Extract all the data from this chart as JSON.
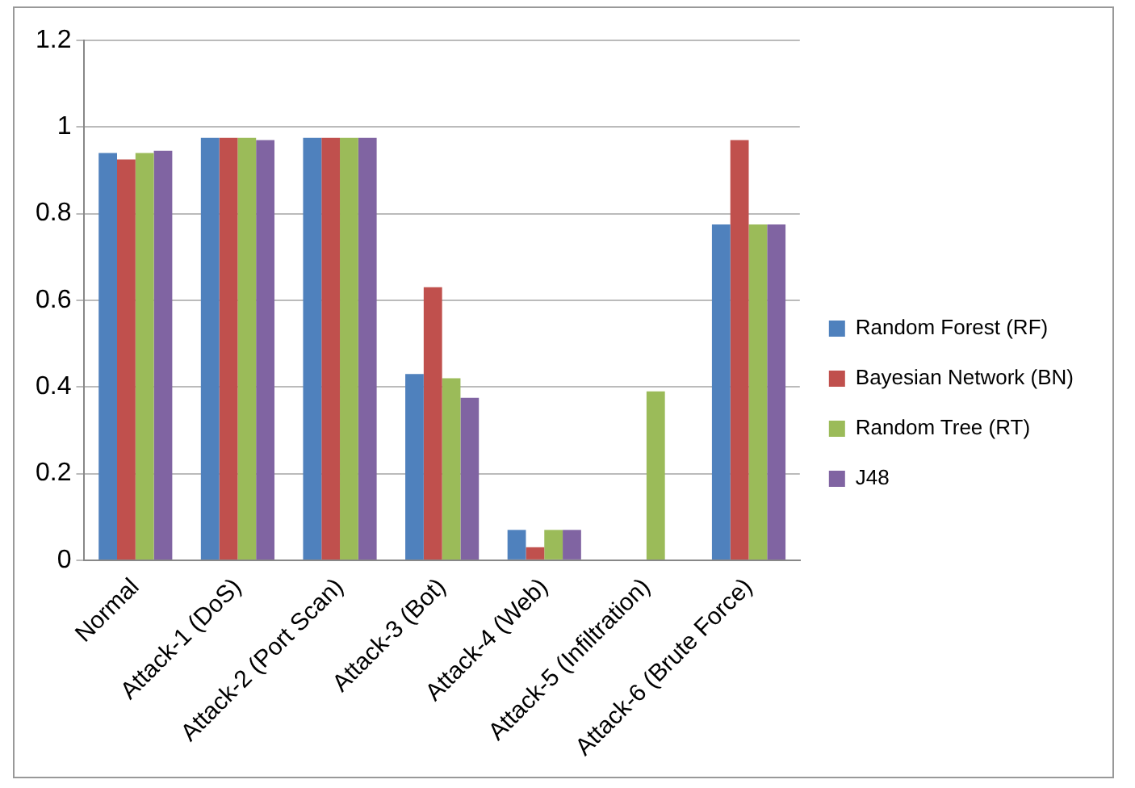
{
  "chart_data": {
    "type": "bar",
    "categories": [
      "Normal",
      "Attack-1 (DoS)",
      "Attack-2 (Port Scan)",
      "Attack-3 (Bot)",
      "Attack-4 (Web)",
      "Attack-5 (Infiltration)",
      "Attack-6 (Brute Force)"
    ],
    "series": [
      {
        "name": "Random Forest (RF)",
        "color": "#4f81bd",
        "values": [
          0.94,
          0.975,
          0.975,
          0.43,
          0.07,
          0,
          0.775
        ]
      },
      {
        "name": "Bayesian Network (BN)",
        "color": "#c0504d",
        "values": [
          0.925,
          0.975,
          0.975,
          0.63,
          0.03,
          0,
          0.97
        ]
      },
      {
        "name": "Random Tree (RT)",
        "color": "#9bbb59",
        "values": [
          0.94,
          0.975,
          0.975,
          0.42,
          0.07,
          0.39,
          0.775
        ]
      },
      {
        "name": "J48",
        "color": "#8064a2",
        "values": [
          0.945,
          0.97,
          0.975,
          0.375,
          0.07,
          0,
          0.775
        ]
      }
    ],
    "ylim": [
      0,
      1.2
    ],
    "yticks": [
      0,
      0.2,
      0.4,
      0.6,
      0.8,
      1,
      1.2
    ],
    "grid": "y",
    "legend": "right"
  }
}
